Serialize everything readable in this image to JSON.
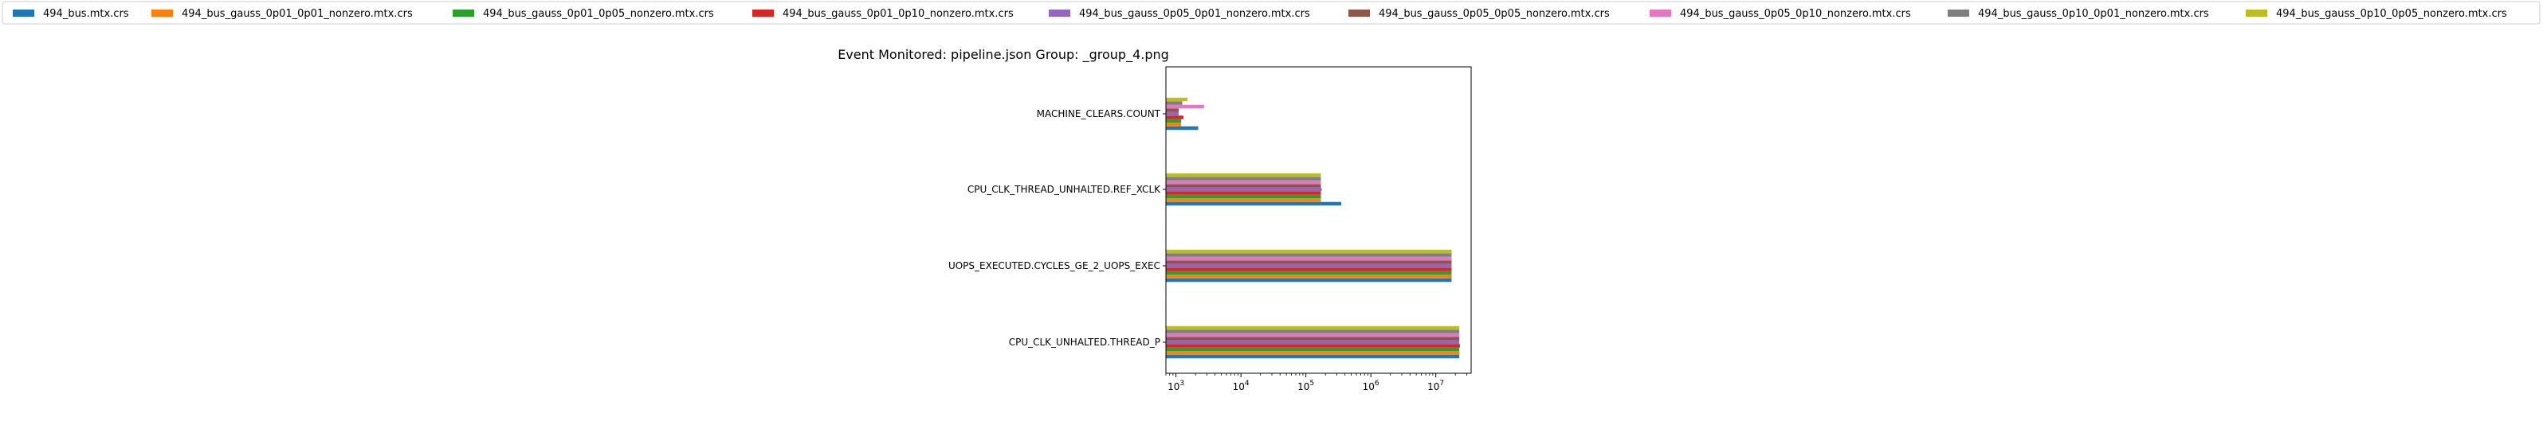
{
  "chart_data": {
    "type": "bar",
    "orientation": "horizontal",
    "title": "Event Monitored: pipeline.json Group: _group_4.png",
    "xlabel": "",
    "ylabel": "",
    "xscale": "log",
    "xlim": [
      700,
      35000000
    ],
    "xticks": [
      {
        "value": 1000,
        "base": "10",
        "exp": "3"
      },
      {
        "value": 10000,
        "base": "10",
        "exp": "4"
      },
      {
        "value": 100000,
        "base": "10",
        "exp": "5"
      },
      {
        "value": 1000000,
        "base": "10",
        "exp": "6"
      },
      {
        "value": 10000000,
        "base": "10",
        "exp": "7"
      }
    ],
    "grid": false,
    "legend_position": "top, spanning full width",
    "categories": [
      "CPU_CLK_UNHALTED.THREAD_P",
      "UOPS_EXECUTED.CYCLES_GE_2_UOPS_EXEC",
      "CPU_CLK_THREAD_UNHALTED.REF_XCLK",
      "MACHINE_CLEARS.COUNT"
    ],
    "series": [
      {
        "name": "494_bus.mtx.crs",
        "color": "#1f77b4",
        "values": [
          23000000,
          17500000,
          350000,
          2200
        ]
      },
      {
        "name": "494_bus_gauss_0p01_0p01_nonzero.mtx.crs",
        "color": "#ff7f0e",
        "values": [
          23000000,
          17500000,
          170000,
          1200
        ]
      },
      {
        "name": "494_bus_gauss_0p01_0p05_nonzero.mtx.crs",
        "color": "#2ca02c",
        "values": [
          23000000,
          17500000,
          170000,
          1200
        ]
      },
      {
        "name": "494_bus_gauss_0p01_0p10_nonzero.mtx.crs",
        "color": "#d62728",
        "values": [
          23500000,
          17500000,
          170000,
          1300
        ]
      },
      {
        "name": "494_bus_gauss_0p05_0p01_nonzero.mtx.crs",
        "color": "#9467bd",
        "values": [
          23000000,
          17500000,
          175000,
          1100
        ]
      },
      {
        "name": "494_bus_gauss_0p05_0p05_nonzero.mtx.crs",
        "color": "#8c564b",
        "values": [
          23000000,
          17500000,
          170000,
          1100
        ]
      },
      {
        "name": "494_bus_gauss_0p05_0p10_nonzero.mtx.crs",
        "color": "#e377c2",
        "values": [
          23000000,
          17500000,
          170000,
          2700
        ]
      },
      {
        "name": "494_bus_gauss_0p10_0p01_nonzero.mtx.crs",
        "color": "#7f7f7f",
        "values": [
          23000000,
          17500000,
          170000,
          1250
        ]
      },
      {
        "name": "494_bus_gauss_0p10_0p05_nonzero.mtx.crs",
        "color": "#bcbd22",
        "values": [
          23000000,
          17500000,
          170000,
          1500
        ]
      }
    ]
  }
}
